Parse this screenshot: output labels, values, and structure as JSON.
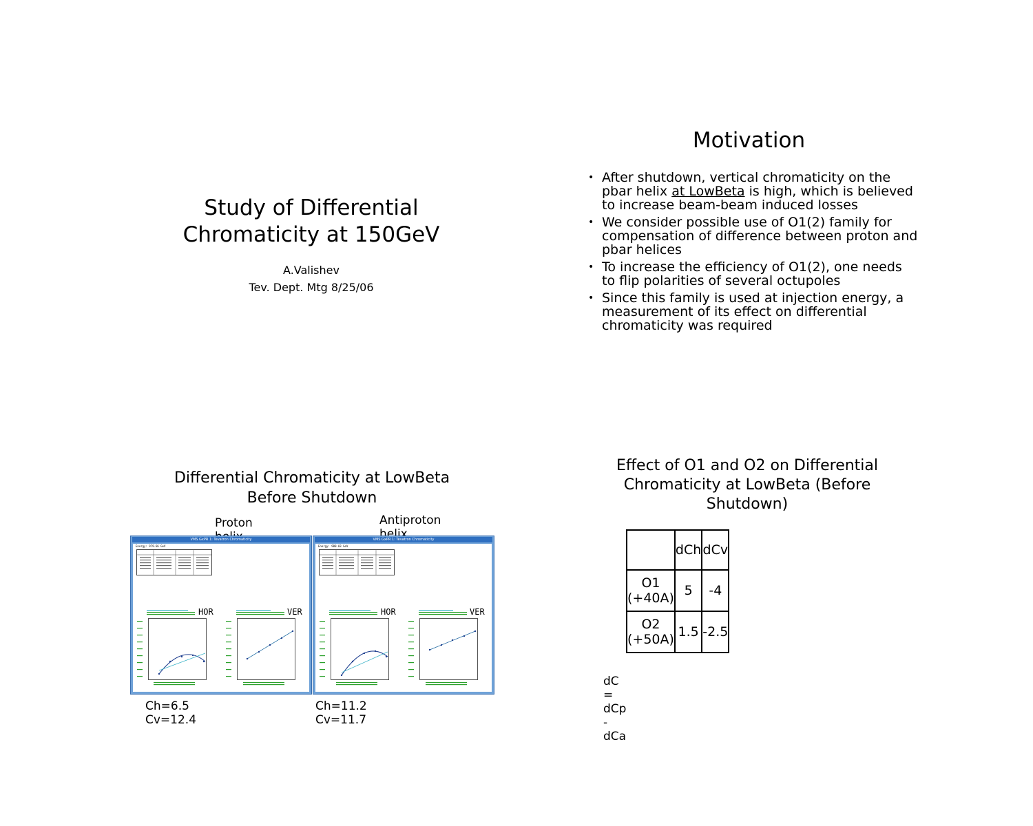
{
  "slide1": {
    "title_line1": "Study of Differential",
    "title_line2": "Chromaticity at 150GeV",
    "author": "A.Valishev",
    "meeting": "Tev. Dept. Mtg 8/25/06"
  },
  "slide2": {
    "title": "Motivation",
    "bullet_char": "•",
    "bullets": [
      {
        "pre": "After shutdown, vertical chromaticity on the pbar helix ",
        "underlined": "at LowBeta",
        "post": " is high, which is believed to increase beam-beam induced losses"
      },
      {
        "text": "We consider possible use of O1(2) family for compensation of difference between proton and pbar helices"
      },
      {
        "text": "To increase the efficiency of O1(2), one needs to flip polarities of several octupoles"
      },
      {
        "text": "Since this family is used at injection energy, a measurement of its effect on differential chromaticity was required"
      }
    ]
  },
  "slide3": {
    "title_line1": "Differential Chromaticity at LowBeta",
    "title_line2": "Before Shutdown",
    "proton_label": "Proton helix",
    "antiproton_label": "Antiproton helix",
    "proton_caption": "Ch=6.5 Cv=12.4",
    "antiproton_caption": "Ch=11.2 Cv=11.7",
    "screens": [
      {
        "window_title": "VMS GxPR 1: Tevatron Chromaticity",
        "energy": "Energy: 979.66 GeV",
        "hor_label": "HOR",
        "ver_label": "VER"
      },
      {
        "window_title": "VMS GxPR 1: Tevatron Chromaticity",
        "energy": "Energy: 980.03 GeV",
        "hor_label": "HOR",
        "ver_label": "VER"
      }
    ]
  },
  "slide4": {
    "title_line1": "Effect of O1 and O2 on Differential",
    "title_line2": "Chromaticity at LowBeta (Before",
    "title_line3": "Shutdown)",
    "table": {
      "header": [
        "",
        "dCh",
        "dCv"
      ],
      "rows": [
        [
          "O1 (+40A)",
          "5",
          "-4"
        ],
        [
          "O2 (+50A)",
          "1.5",
          "-2.5"
        ]
      ]
    },
    "formula": "dC = dCp - dCa"
  },
  "colors": {
    "window_frame": "#6fa2d8",
    "window_titlebar": "#2f6fc0",
    "plot_text": "#2aa02a",
    "fit_curve": "#1f3f8f",
    "fit_line_light": "#3fb4c8"
  }
}
